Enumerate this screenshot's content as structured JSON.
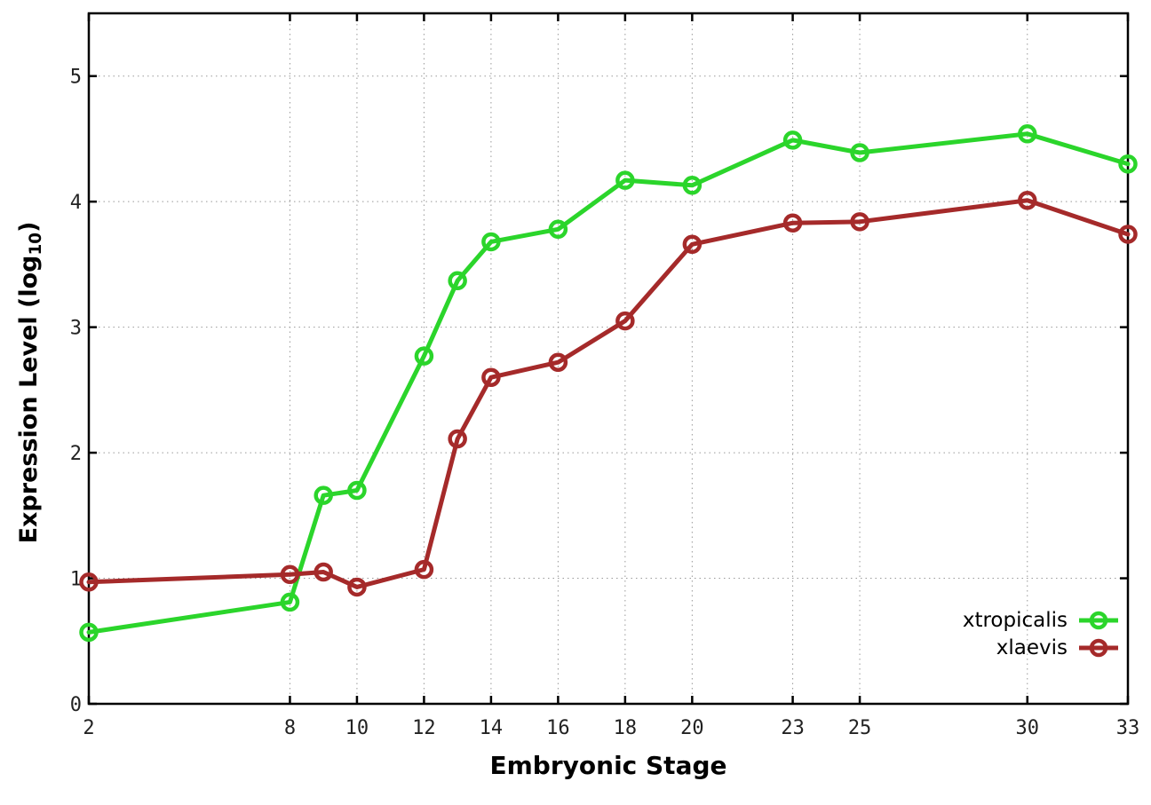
{
  "chart_data": {
    "type": "line",
    "title": "",
    "xlabel": "Embryonic Stage",
    "ylabel": "Expression Level (log10)",
    "ylabel_parts": {
      "base": "Expression Level (log",
      "sub": "10",
      "close": ")"
    },
    "x": [
      2,
      8,
      9,
      10,
      12,
      13,
      14,
      16,
      18,
      20,
      23,
      25,
      30,
      33
    ],
    "xticks": [
      2,
      8,
      10,
      12,
      14,
      16,
      18,
      20,
      23,
      25,
      30,
      33
    ],
    "yticks": [
      0,
      1,
      2,
      3,
      4,
      5
    ],
    "xlim": [
      2,
      33
    ],
    "ylim": [
      0,
      5.5
    ],
    "grid": true,
    "legend_position": "bottom-right",
    "series": [
      {
        "name": "xtropicalis",
        "color": "#2bd52b",
        "values": [
          0.57,
          0.81,
          1.66,
          1.7,
          2.77,
          3.37,
          3.68,
          3.78,
          4.17,
          4.13,
          4.49,
          4.39,
          4.54,
          4.3
        ]
      },
      {
        "name": "xlaevis",
        "color": "#a52a2a",
        "values": [
          0.97,
          1.03,
          1.05,
          0.93,
          1.07,
          2.11,
          2.6,
          2.72,
          3.05,
          3.66,
          3.83,
          3.84,
          4.01,
          3.74
        ]
      }
    ],
    "axis_color": "#000000",
    "grid_color": "#999999"
  }
}
